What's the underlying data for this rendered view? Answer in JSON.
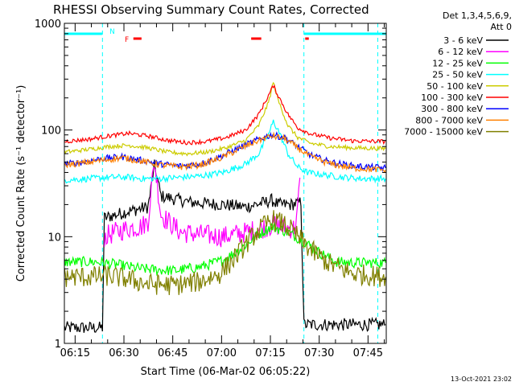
{
  "chart_data": {
    "type": "line",
    "title": "RHESSI Observing Summary Count Rates, Corrected",
    "xlabel": "Start Time (06-Mar-02 06:05:22)",
    "ylabel": "Corrected Count Rate (s⁻¹ detector⁻¹)",
    "yscale": "log",
    "ylim": [
      1,
      1000
    ],
    "xlim_minutes": [
      6.3,
      105.2
    ],
    "x_unit": "minutes after 06:05:22",
    "yticks": [
      {
        "value": 1,
        "label": "1"
      },
      {
        "value": 10,
        "label": "10"
      },
      {
        "value": 100,
        "label": "100"
      },
      {
        "value": 1000,
        "label": "1000"
      }
    ],
    "xticks": [
      {
        "value": 9.6,
        "label": "06:15"
      },
      {
        "value": 24.6,
        "label": "06:30"
      },
      {
        "value": 39.6,
        "label": "06:45"
      },
      {
        "value": 54.6,
        "label": "07:00"
      },
      {
        "value": 69.6,
        "label": "07:15"
      },
      {
        "value": 84.6,
        "label": "07:30"
      },
      {
        "value": 99.6,
        "label": "07:45"
      }
    ],
    "legend": {
      "position": "right",
      "header": [
        "Det 1,3,4,5,6,9,",
        "Att 0"
      ]
    },
    "series": [
      {
        "name": "3 - 6 keV",
        "color": "#000000",
        "points": [
          [
            6.3,
            1.4
          ],
          [
            18,
            1.4
          ],
          [
            18.6,
            15
          ],
          [
            25,
            17
          ],
          [
            32,
            19
          ],
          [
            34,
            46
          ],
          [
            36,
            24
          ],
          [
            45,
            21
          ],
          [
            55,
            20
          ],
          [
            62,
            19
          ],
          [
            68,
            21
          ],
          [
            70,
            22
          ],
          [
            72,
            20
          ],
          [
            76,
            20
          ],
          [
            79,
            21
          ],
          [
            79.9,
            1.5
          ],
          [
            105,
            1.5
          ]
        ]
      },
      {
        "name": "6 - 12 keV",
        "color": "#ff00ff",
        "points": [
          [
            18.6,
            10
          ],
          [
            22,
            11
          ],
          [
            26,
            12
          ],
          [
            30,
            12.5
          ],
          [
            32,
            14
          ],
          [
            33,
            28
          ],
          [
            34,
            50
          ],
          [
            36,
            16
          ],
          [
            42,
            11
          ],
          [
            48,
            10.5
          ],
          [
            55,
            10
          ],
          [
            62,
            11
          ],
          [
            67,
            12
          ],
          [
            71,
            13
          ],
          [
            74,
            12
          ],
          [
            77,
            12
          ],
          [
            78,
            18
          ],
          [
            79,
            46
          ],
          [
            79.9,
            null
          ]
        ]
      },
      {
        "name": "12 - 25 keV",
        "color": "#00ff00",
        "points": [
          [
            6.3,
            5.8
          ],
          [
            16,
            5.8
          ],
          [
            22,
            5.5
          ],
          [
            30,
            5
          ],
          [
            40,
            4.8
          ],
          [
            48,
            5.2
          ],
          [
            55,
            6
          ],
          [
            60,
            7.5
          ],
          [
            65,
            10
          ],
          [
            70,
            12.5
          ],
          [
            75,
            11
          ],
          [
            80,
            9
          ],
          [
            85,
            7
          ],
          [
            90,
            5.8
          ],
          [
            95,
            5.7
          ],
          [
            105,
            5.7
          ]
        ]
      },
      {
        "name": "25 - 50 keV",
        "color": "#00ffff",
        "points": [
          [
            6.3,
            34
          ],
          [
            14,
            35
          ],
          [
            20,
            36
          ],
          [
            26,
            36
          ],
          [
            30,
            35
          ],
          [
            35,
            35
          ],
          [
            42,
            36
          ],
          [
            48,
            37
          ],
          [
            55,
            40
          ],
          [
            62,
            48
          ],
          [
            66,
            60
          ],
          [
            69,
            90
          ],
          [
            70.5,
            120
          ],
          [
            72,
            100
          ],
          [
            75,
            60
          ],
          [
            78,
            45
          ],
          [
            81,
            40
          ],
          [
            86,
            38
          ],
          [
            92,
            36
          ],
          [
            98,
            35
          ],
          [
            105,
            35
          ]
        ]
      },
      {
        "name": "50 - 100 keV",
        "color": "#cccc00",
        "points": [
          [
            6.3,
            62
          ],
          [
            14,
            66
          ],
          [
            20,
            70
          ],
          [
            26,
            72
          ],
          [
            32,
            68
          ],
          [
            38,
            62
          ],
          [
            44,
            60
          ],
          [
            50,
            62
          ],
          [
            56,
            68
          ],
          [
            62,
            80
          ],
          [
            66,
            110
          ],
          [
            69,
            180
          ],
          [
            70.5,
            280
          ],
          [
            72,
            190
          ],
          [
            75,
            110
          ],
          [
            78,
            85
          ],
          [
            82,
            75
          ],
          [
            88,
            70
          ],
          [
            95,
            68
          ],
          [
            105,
            67
          ]
        ]
      },
      {
        "name": "100 - 300 keV",
        "color": "#ff0000",
        "points": [
          [
            6.3,
            78
          ],
          [
            14,
            82
          ],
          [
            20,
            88
          ],
          [
            26,
            93
          ],
          [
            32,
            88
          ],
          [
            38,
            80
          ],
          [
            44,
            76
          ],
          [
            50,
            78
          ],
          [
            56,
            85
          ],
          [
            62,
            100
          ],
          [
            66,
            140
          ],
          [
            69,
            210
          ],
          [
            70.5,
            260
          ],
          [
            72,
            210
          ],
          [
            75,
            140
          ],
          [
            78,
            105
          ],
          [
            82,
            92
          ],
          [
            88,
            84
          ],
          [
            95,
            79
          ],
          [
            105,
            78
          ]
        ]
      },
      {
        "name": "300 - 800 keV",
        "color": "#0000ff",
        "points": [
          [
            6.3,
            48
          ],
          [
            12,
            50
          ],
          [
            18,
            54
          ],
          [
            24,
            56
          ],
          [
            30,
            52
          ],
          [
            36,
            48
          ],
          [
            42,
            46
          ],
          [
            48,
            48
          ],
          [
            54,
            56
          ],
          [
            60,
            68
          ],
          [
            66,
            82
          ],
          [
            70,
            90
          ],
          [
            74,
            85
          ],
          [
            78,
            70
          ],
          [
            82,
            58
          ],
          [
            88,
            50
          ],
          [
            95,
            46
          ],
          [
            105,
            44
          ]
        ]
      },
      {
        "name": "800 - 7000 keV",
        "color": "#ff8000",
        "points": [
          [
            6.3,
            47
          ],
          [
            12,
            49
          ],
          [
            18,
            52
          ],
          [
            24,
            55
          ],
          [
            30,
            51
          ],
          [
            36,
            47
          ],
          [
            42,
            45
          ],
          [
            48,
            47
          ],
          [
            54,
            54
          ],
          [
            60,
            66
          ],
          [
            66,
            80
          ],
          [
            70,
            88
          ],
          [
            74,
            83
          ],
          [
            78,
            68
          ],
          [
            82,
            56
          ],
          [
            88,
            48
          ],
          [
            95,
            44
          ],
          [
            105,
            42
          ]
        ]
      },
      {
        "name": "7000 - 15000 keV",
        "color": "#808000",
        "points": [
          [
            6.3,
            4.2
          ],
          [
            14,
            4.2
          ],
          [
            20,
            4.3
          ],
          [
            26,
            4.0
          ],
          [
            32,
            3.6
          ],
          [
            40,
            3.5
          ],
          [
            48,
            3.8
          ],
          [
            54,
            4.5
          ],
          [
            58,
            6
          ],
          [
            62,
            8.5
          ],
          [
            66,
            11.5
          ],
          [
            70,
            14.5
          ],
          [
            74,
            13
          ],
          [
            78,
            10
          ],
          [
            82,
            7.5
          ],
          [
            88,
            5.5
          ],
          [
            95,
            4.5
          ],
          [
            105,
            4.2
          ]
        ]
      }
    ],
    "annotations": {
      "night_bars": [
        {
          "start": 6.3,
          "end": 17.9
        },
        {
          "start": 79.9,
          "end": 105.2
        }
      ],
      "flare_segments": [
        {
          "start": 27.5,
          "end": 30.0
        },
        {
          "start": 63.7,
          "end": 66.8
        },
        {
          "start": 80.3,
          "end": 81.4
        }
      ],
      "saa_or_gap_lines": [
        18.0,
        79.9,
        102.6
      ],
      "labels": [
        {
          "text": "N",
          "at": 21.0
        },
        {
          "text": "F",
          "at": 25.5
        }
      ]
    }
  },
  "footer": {
    "timestamp": "13-Oct-2021 23:02"
  }
}
